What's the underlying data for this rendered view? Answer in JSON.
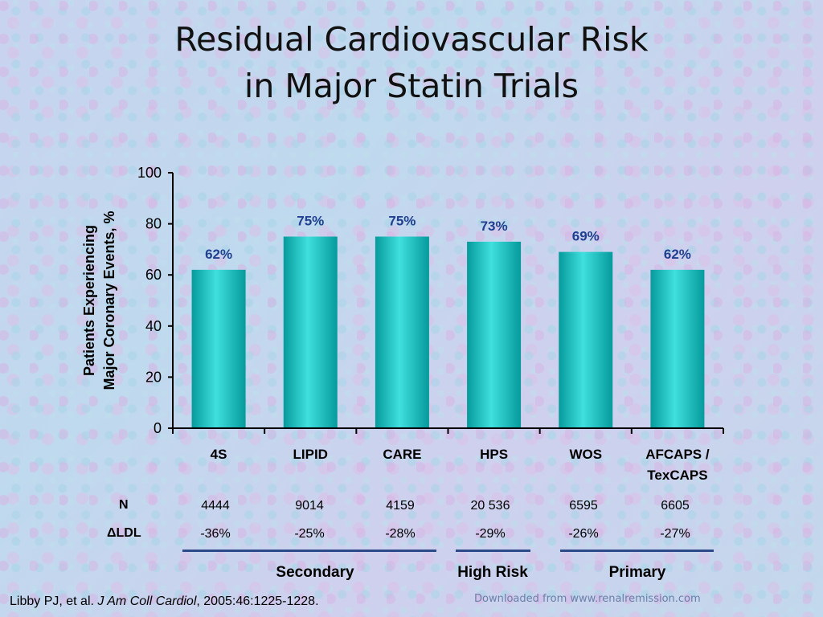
{
  "title": {
    "line1": "Residual Cardiovascular Risk",
    "line2": "in Major Statin Trials"
  },
  "chart_data": {
    "type": "bar",
    "categories": [
      [
        "4S"
      ],
      [
        "LIPID"
      ],
      [
        "CARE"
      ],
      [
        "HPS"
      ],
      [
        "WOS"
      ],
      [
        "AFCAPS /",
        "TexCAPS"
      ]
    ],
    "values": [
      62,
      75,
      75,
      73,
      69,
      62
    ],
    "data_labels": [
      "62%",
      "75%",
      "75%",
      "73%",
      "69%",
      "62%"
    ],
    "ylabel_lines": [
      "Patients Experiencing",
      "Major Coronary Events, %"
    ],
    "ylim": [
      0,
      100
    ],
    "yticks": [
      0,
      20,
      40,
      60,
      80,
      100
    ],
    "grid": false,
    "colors": {
      "bar": "#0fbfbf",
      "bar_dark": "#069a9c",
      "bar_light": "#3fe0de",
      "data_label": "#1f3f8f",
      "axis": "#000000"
    }
  },
  "table": {
    "n_label": "N",
    "ldl_label": "LDL",
    "delta_symbol": "Δ",
    "n_values": [
      "4444",
      "9014",
      "4159",
      "20 536",
      "6595",
      "6605"
    ],
    "ldl_values": [
      "-36%",
      "-25%",
      "-28%",
      "-29%",
      "-26%",
      "-27%"
    ]
  },
  "groups": {
    "secondary": "Secondary",
    "high_risk": "High Risk",
    "primary": "Primary"
  },
  "citation": {
    "authors": "Libby PJ, et al. ",
    "journal": "J Am Coll Cardiol",
    "details": ", 2005:46:1225-1228."
  },
  "watermark": "Downloaded from www.renalremission.com"
}
